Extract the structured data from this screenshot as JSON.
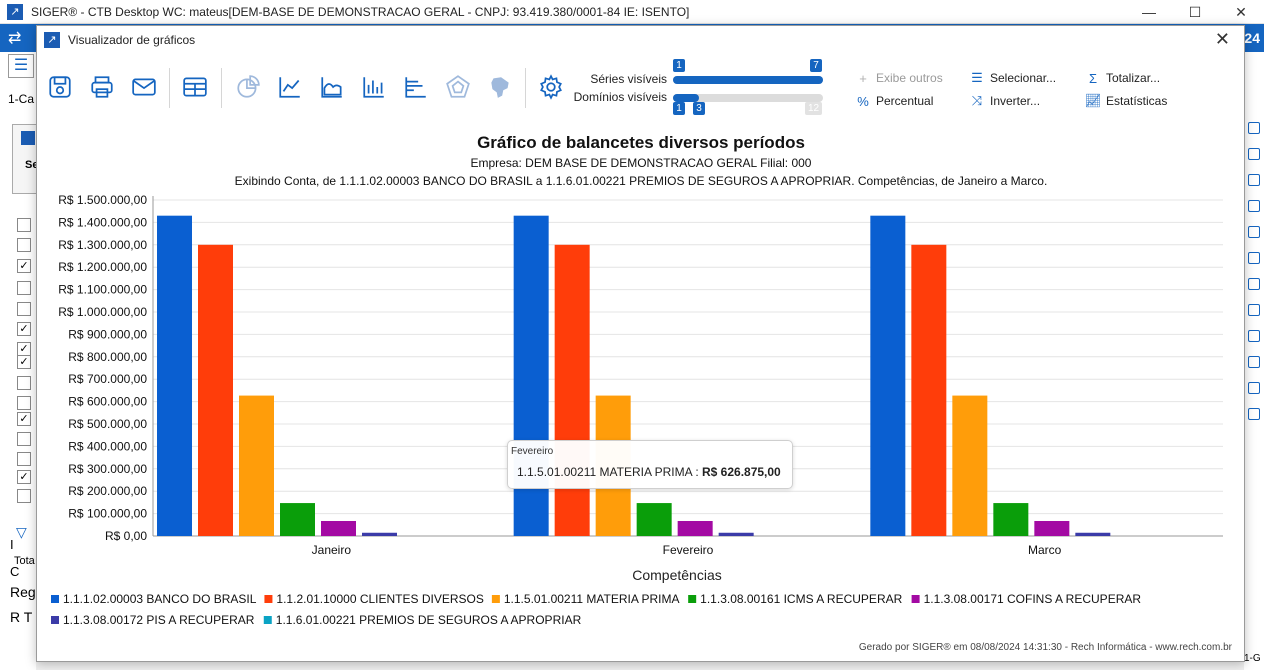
{
  "window": {
    "title": "SIGER® - CTB Desktop WC: mateus[DEM-BASE DE DEMONSTRACAO GERAL - CNPJ: 93.419.380/0001-84 IE: ISENTO]",
    "minimize": "—",
    "maximize": "☐",
    "close": "✕"
  },
  "background": {
    "year_badge": "24",
    "tab_label": "1-Ca",
    "panel_label": "Se",
    "footer_tota": "Tota",
    "text_i": "I",
    "text_c": "C",
    "text_reg": "Reg",
    "text_rt": "R T",
    "right_edge_label": "1-G"
  },
  "dialog": {
    "title": "Visualizador de gráficos",
    "close": "✕"
  },
  "toolbar": {
    "series_label": "Séries visíveis",
    "series_min": "1",
    "series_max": "7",
    "domains_label": "Domínios visíveis",
    "domains_min": "1",
    "domains_value": "3",
    "domains_max": "12",
    "exibe_outros": "Exibe outros",
    "percentual": "Percentual",
    "selecionar": "Selecionar...",
    "inverter": "Inverter...",
    "totalizar": "Totalizar...",
    "estatisticas": "Estatísticas"
  },
  "chart_data": {
    "type": "bar",
    "title": "Gráfico de balancetes diversos períodos",
    "subtitle1": "Empresa: DEM BASE DE DEMONSTRACAO GERAL Filial: 000",
    "subtitle2": "Exibindo Conta, de 1.1.1.02.00003 BANCO DO BRASIL a 1.1.6.01.00221 PREMIOS DE SEGUROS A APROPRIAR. Competências, de Janeiro a Marco.",
    "xlabel": "Competências",
    "ylabel": "",
    "categories": [
      "Janeiro",
      "Fevereiro",
      "Marco"
    ],
    "ylim": [
      0,
      1500000
    ],
    "ytick_step": 100000,
    "ytick_labels": [
      "R$ 0,00",
      "R$ 100.000,00",
      "R$ 200.000,00",
      "R$ 300.000,00",
      "R$ 400.000,00",
      "R$ 500.000,00",
      "R$ 600.000,00",
      "R$ 700.000,00",
      "R$ 800.000,00",
      "R$ 900.000,00",
      "R$ 1.000.000,00",
      "R$ 1.100.000,00",
      "R$ 1.200.000,00",
      "R$ 1.300.000,00",
      "R$ 1.400.000,00",
      "R$ 1.500.000,00"
    ],
    "grid": true,
    "legend_position": "bottom",
    "series": [
      {
        "name": "1.1.1.02.00003 BANCO DO BRASIL",
        "color": "#0a5fd1",
        "values": [
          1430000,
          1430000,
          1430000
        ]
      },
      {
        "name": "1.1.2.01.10000 CLIENTES DIVERSOS",
        "color": "#ff3d0a",
        "values": [
          1300000,
          1300000,
          1300000
        ]
      },
      {
        "name": "1.1.5.01.00211 MATERIA PRIMA",
        "color": "#ff9d0a",
        "values": [
          626875,
          626875,
          626875
        ]
      },
      {
        "name": "1.1.3.08.00161 ICMS A RECUPERAR",
        "color": "#0a9e0a",
        "values": [
          147000,
          147000,
          147000
        ]
      },
      {
        "name": "1.1.3.08.00171 COFINS A RECUPERAR",
        "color": "#a30aa3",
        "values": [
          67000,
          67000,
          67000
        ]
      },
      {
        "name": "1.1.3.08.00172 PIS A RECUPERAR",
        "color": "#3b3ba8",
        "values": [
          14500,
          14500,
          14500
        ]
      },
      {
        "name": "1.1.6.01.00221 PREMIOS DE SEGUROS A APROPRIAR",
        "color": "#0aa3c4",
        "values": [
          0,
          0,
          0
        ]
      }
    ],
    "tooltip": {
      "category": "Fevereiro",
      "series": "1.1.5.01.00211 MATERIA PRIMA",
      "value": "R$ 626.875,00"
    }
  },
  "footer": "Gerado por SIGER® em 08/08/2024 14:31:30 - Rech Informática - www.rech.com.br"
}
